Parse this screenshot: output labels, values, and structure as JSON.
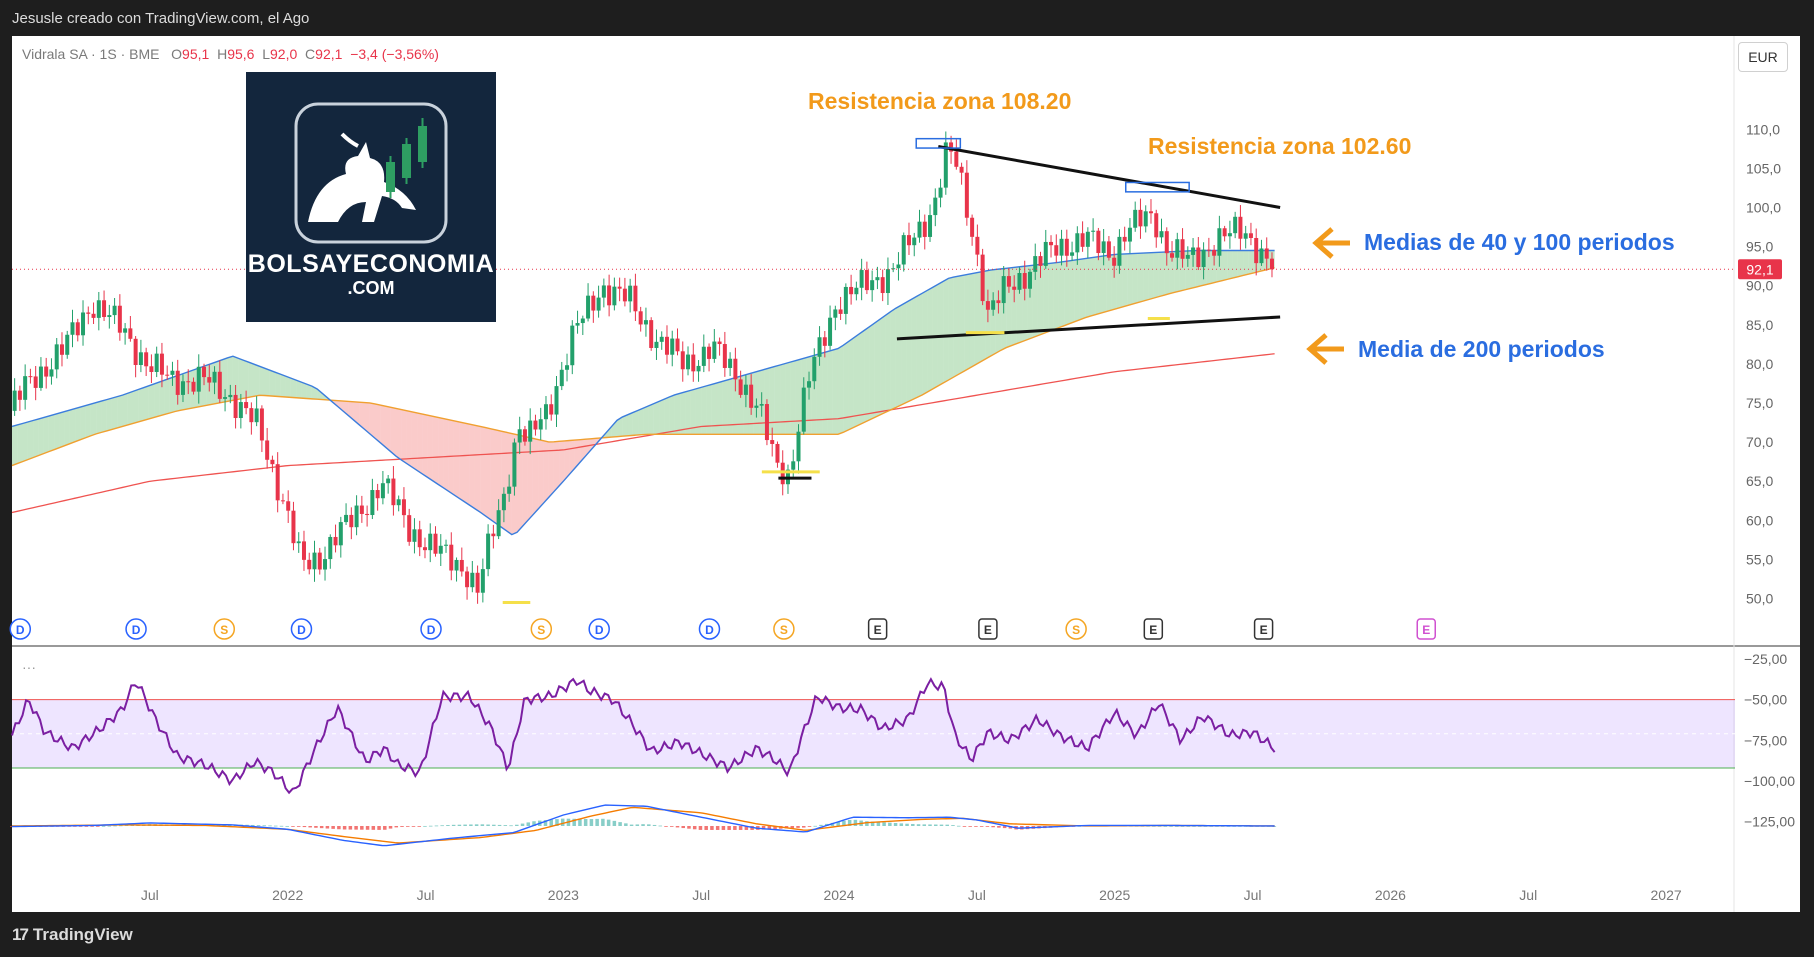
{
  "header": {
    "created_by": "Jesusle creado con TradingView.com, el Ago"
  },
  "footer": {
    "brand": "TradingView",
    "brand_mark": "17"
  },
  "ticker": {
    "symbol": "Vidrala SA · 1S · BME",
    "o_label": "O",
    "o_value": "95,1",
    "h_label": "H",
    "h_value": "95,6",
    "l_label": "L",
    "l_value": "92,0",
    "c_label": "C",
    "c_value": "92,1",
    "change": "−3,4 (−3,56%)"
  },
  "currency": "EUR",
  "logo": {
    "line1": "BOLSAYECONOMIA",
    "line2": ".COM"
  },
  "last_price_label": "92,1",
  "indicator_label": "···",
  "colors": {
    "up": "#22a06b",
    "down": "#e8344a",
    "ma40": "#3b7ddd",
    "ma100": "#f0a030",
    "ma200": "#ef5350",
    "rsi": "#7b1fa2",
    "annot_orange": "#f29a1b",
    "annot_blue": "#2a6de0"
  },
  "chart_data": [
    {
      "type": "line",
      "subtype": "candlestick",
      "y_axis_side": "right",
      "ylim": [
        47,
        114
      ],
      "y_ticks": [
        110,
        105,
        100,
        95,
        90,
        85,
        80,
        75,
        70,
        65,
        60,
        55,
        50
      ],
      "y_tick_labels": [
        "110,0",
        "105,0",
        "100,0",
        "95,0",
        "90,0",
        "85,0",
        "80,0",
        "75,0",
        "70,0",
        "65,0",
        "60,0",
        "55,0",
        "50,0"
      ],
      "x_ticks": [
        {
          "t": 2021.5,
          "label": "Jul"
        },
        {
          "t": 2022.0,
          "label": "2022"
        },
        {
          "t": 2022.5,
          "label": "Jul"
        },
        {
          "t": 2023.0,
          "label": "2023"
        },
        {
          "t": 2023.5,
          "label": "Jul"
        },
        {
          "t": 2024.0,
          "label": "2024"
        },
        {
          "t": 2024.5,
          "label": "Jul"
        },
        {
          "t": 2025.0,
          "label": "2025"
        },
        {
          "t": 2025.5,
          "label": "Jul"
        },
        {
          "t": 2026.0,
          "label": "2026"
        },
        {
          "t": 2026.5,
          "label": "Jul"
        },
        {
          "t": 2027.0,
          "label": "2027"
        }
      ],
      "x_range": [
        2021.0,
        2027.25
      ],
      "price_path": {
        "t": [
          2021.0,
          2021.08,
          2021.2,
          2021.3,
          2021.42,
          2021.5,
          2021.58,
          2021.7,
          2021.8,
          2021.9,
          2022.0,
          2022.06,
          2022.12,
          2022.18,
          2022.25,
          2022.35,
          2022.45,
          2022.55,
          2022.65,
          2022.7,
          2022.75,
          2022.8,
          2022.82,
          2022.85,
          2022.88,
          2022.95,
          2023.05,
          2023.15,
          2023.25,
          2023.35,
          2023.45,
          2023.55,
          2023.65,
          2023.72,
          2023.78,
          2023.83,
          2023.86,
          2023.9,
          2023.95,
          2024.0,
          2024.1,
          2024.2,
          2024.28,
          2024.35,
          2024.4,
          2024.43,
          2024.46,
          2024.5,
          2024.55,
          2024.62,
          2024.7,
          2024.8,
          2024.9,
          2025.0,
          2025.05,
          2025.1,
          2025.15,
          2025.2,
          2025.28,
          2025.38,
          2025.48,
          2025.55,
          2025.58
        ],
        "close": [
          74,
          78,
          82,
          88,
          84,
          80,
          78,
          78,
          76,
          72,
          62,
          54,
          55,
          58,
          60,
          65,
          59,
          56,
          54,
          51,
          58,
          64,
          68,
          72,
          70,
          74,
          84,
          90,
          88,
          83,
          80,
          82,
          78,
          74,
          67,
          66,
          72,
          78,
          83,
          88,
          90,
          92,
          96,
          100,
          107,
          106,
          102,
          96,
          86,
          90,
          92,
          95,
          96,
          94,
          97,
          98,
          99,
          95,
          93,
          96,
          97,
          94,
          92.1
        ]
      },
      "last_close": 92.1,
      "series": [
        {
          "name": "",
          "kind": "sma40",
          "t": [
            2021.0,
            2021.4,
            2021.8,
            2022.1,
            2022.4,
            2022.7,
            2022.82,
            2023.0,
            2023.2,
            2023.4,
            2023.7,
            2024.0,
            2024.2,
            2024.4,
            2024.55,
            2024.8,
            2025.0,
            2025.3,
            2025.58
          ],
          "values": [
            72,
            76,
            81,
            77,
            68,
            61,
            58,
            65,
            73,
            76,
            79,
            82,
            87,
            91,
            92,
            93,
            94,
            94.5,
            94.5
          ]
        },
        {
          "name": "",
          "kind": "sma100",
          "t": [
            2021.0,
            2021.3,
            2021.6,
            2021.9,
            2022.3,
            2022.7,
            2022.95,
            2023.3,
            2023.7,
            2024.0,
            2024.3,
            2024.6,
            2024.9,
            2025.2,
            2025.58
          ],
          "values": [
            67,
            71,
            74,
            76,
            75,
            72,
            70,
            71,
            71,
            71,
            76,
            82,
            86,
            89,
            92.3
          ]
        },
        {
          "name": "",
          "kind": "sma200",
          "t": [
            2021.0,
            2021.5,
            2022.0,
            2022.5,
            2023.0,
            2023.5,
            2024.0,
            2024.5,
            2025.0,
            2025.58
          ],
          "values": [
            61,
            65,
            67,
            68,
            69,
            72,
            73,
            76,
            79,
            81.3
          ]
        }
      ],
      "annotations": [
        {
          "text": "Resistencia zona 108.20",
          "color": "orange",
          "level": 108.2
        },
        {
          "text": "Resistencia zona 102.60",
          "color": "orange",
          "level": 102.6
        },
        {
          "text": "Medias de 40 y 100 periodos",
          "color": "blue"
        },
        {
          "text": "Media de 200 periodos",
          "color": "blue"
        }
      ],
      "trendlines": [
        {
          "from": [
            2024.36,
            107.8
          ],
          "to": [
            2025.6,
            100.0
          ]
        },
        {
          "from": [
            2024.21,
            83.2
          ],
          "to": [
            2025.6,
            86.0
          ]
        },
        {
          "from": [
            2023.78,
            65.4
          ],
          "to": [
            2023.9,
            65.4
          ]
        }
      ],
      "event_markers": [
        {
          "t": 2021.03,
          "label": "D"
        },
        {
          "t": 2021.45,
          "label": "D"
        },
        {
          "t": 2021.77,
          "label": "S"
        },
        {
          "t": 2022.05,
          "label": "D"
        },
        {
          "t": 2022.52,
          "label": "D"
        },
        {
          "t": 2022.92,
          "label": "S"
        },
        {
          "t": 2023.13,
          "label": "D"
        },
        {
          "t": 2023.53,
          "label": "D"
        },
        {
          "t": 2023.8,
          "label": "S"
        },
        {
          "t": 2024.14,
          "label": "E"
        },
        {
          "t": 2024.54,
          "label": "E"
        },
        {
          "t": 2024.86,
          "label": "S"
        },
        {
          "t": 2025.14,
          "label": "E"
        },
        {
          "t": 2025.54,
          "label": "E"
        },
        {
          "t": 2026.13,
          "label": "E"
        }
      ]
    },
    {
      "type": "line",
      "name": "",
      "y_axis_side": "right",
      "ylim": [
        -135,
        -22
      ],
      "y_ticks": [
        -25,
        -50,
        -75,
        -100,
        -125
      ],
      "y_tick_labels": [
        "−25,00",
        "−50,00",
        "−75,00",
        "−100,00",
        "−125,00"
      ],
      "bands": [
        -50,
        -92
      ],
      "mid_line": -71,
      "rsi_path": {
        "t": [
          2021.0,
          2021.06,
          2021.12,
          2021.22,
          2021.32,
          2021.4,
          2021.45,
          2021.52,
          2021.6,
          2021.7,
          2021.8,
          2021.88,
          2021.95,
          2022.02,
          2022.1,
          2022.18,
          2022.28,
          2022.35,
          2022.4,
          2022.48,
          2022.56,
          2022.66,
          2022.74,
          2022.8,
          2022.86,
          2022.95,
          2023.05,
          2023.1,
          2023.18,
          2023.25,
          2023.32,
          2023.42,
          2023.52,
          2023.6,
          2023.7,
          2023.76,
          2023.82,
          2023.86,
          2023.92,
          2024.0,
          2024.08,
          2024.16,
          2024.25,
          2024.32,
          2024.38,
          2024.42,
          2024.48,
          2024.54,
          2024.62,
          2024.72,
          2024.8,
          2024.9,
          2025.0,
          2025.08,
          2025.16,
          2025.24,
          2025.32,
          2025.42,
          2025.5,
          2025.58
        ],
        "values": [
          -72,
          -50,
          -70,
          -80,
          -68,
          -56,
          -38,
          -62,
          -85,
          -90,
          -100,
          -88,
          -95,
          -108,
          -80,
          -55,
          -88,
          -80,
          -90,
          -95,
          -48,
          -48,
          -68,
          -93,
          -50,
          -48,
          -38,
          -45,
          -50,
          -65,
          -82,
          -76,
          -85,
          -92,
          -80,
          -86,
          -95,
          -75,
          -48,
          -55,
          -56,
          -68,
          -62,
          -40,
          -42,
          -72,
          -87,
          -70,
          -75,
          -62,
          -72,
          -80,
          -58,
          -72,
          -52,
          -75,
          -60,
          -72,
          -70,
          -80
        ]
      }
    },
    {
      "type": "line",
      "name": "",
      "macd_path": {
        "t": [
          2021.0,
          2021.3,
          2021.5,
          2021.8,
          2022.0,
          2022.2,
          2022.35,
          2022.6,
          2022.82,
          2023.0,
          2023.15,
          2023.3,
          2023.5,
          2023.7,
          2023.88,
          2024.05,
          2024.25,
          2024.4,
          2024.5,
          2024.65,
          2024.9,
          2025.2,
          2025.58
        ],
        "values": [
          -0.05,
          0.05,
          0.28,
          0.1,
          -0.3,
          -1.3,
          -1.8,
          -1.1,
          -0.6,
          1.0,
          1.9,
          1.8,
          0.8,
          -0.2,
          -0.55,
          0.8,
          0.75,
          0.8,
          0.55,
          -0.2,
          0.05,
          0.05,
          0.0
        ]
      },
      "signal_path": {
        "t": [
          2021.0,
          2021.4,
          2021.7,
          2022.0,
          2022.2,
          2022.4,
          2022.7,
          2022.9,
          2023.1,
          2023.25,
          2023.5,
          2023.7,
          2023.88,
          2024.1,
          2024.3,
          2024.45,
          2024.62,
          2024.9,
          2025.2,
          2025.58
        ],
        "values": [
          0.0,
          0.1,
          0.05,
          -0.3,
          -0.95,
          -1.55,
          -1.05,
          -0.4,
          0.9,
          1.7,
          1.2,
          0.2,
          -0.4,
          0.3,
          0.6,
          0.7,
          0.2,
          0.0,
          0.05,
          0.0
        ]
      }
    }
  ]
}
